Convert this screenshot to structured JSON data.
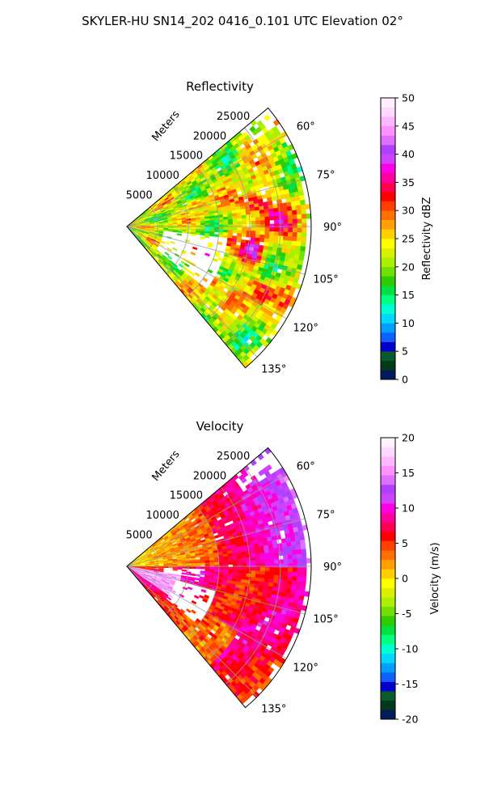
{
  "figure_title": "SKYLER-HU  SN14_202  0416_0.101 UTC Elevation 02°",
  "chart_data": [
    {
      "type": "heatmap",
      "subtype": "radar-ppi-sector",
      "title": "Reflectivity",
      "range_axis_label": "Meters",
      "range_ticks": [
        "5000",
        "10000",
        "15000",
        "20000",
        "25000"
      ],
      "range_tick_values": [
        5000,
        10000,
        15000,
        20000,
        25000
      ],
      "range_max": 30000,
      "azimuth_range": [
        50,
        140
      ],
      "azimuth_ticks": [
        "60°",
        "75°",
        "90°",
        "105°",
        "120°",
        "135°"
      ],
      "azimuth_tick_values": [
        60,
        75,
        90,
        105,
        120,
        135
      ],
      "grid": true,
      "colorbar": {
        "label": "Reflectivity dBZ",
        "range": [
          0,
          50
        ],
        "ticks": [
          "0",
          "5",
          "10",
          "15",
          "20",
          "25",
          "30",
          "35",
          "40",
          "45",
          "50"
        ],
        "tick_values": [
          0,
          5,
          10,
          15,
          20,
          25,
          30,
          35,
          40,
          45,
          50
        ],
        "colors": [
          "#001a5c",
          "#003a1a",
          "#0a5a2a",
          "#0000c8",
          "#1060ff",
          "#00a0ff",
          "#00d8ff",
          "#00ffd0",
          "#00ff80",
          "#00e040",
          "#30cc00",
          "#70e000",
          "#a8f000",
          "#d8f000",
          "#ffff00",
          "#ffd000",
          "#ffa000",
          "#ff7000",
          "#ff4000",
          "#ff0000",
          "#ff0050",
          "#ff00a0",
          "#ff00e0",
          "#d040ff",
          "#b040ff",
          "#e070ff",
          "#ff90ff",
          "#ffb8ff",
          "#ffd8ff",
          "#fff0ff"
        ]
      },
      "field_summary": "reflectivity mostly 20-30 dBZ with embedded cores 35-45 dBZ"
    },
    {
      "type": "heatmap",
      "subtype": "radar-ppi-sector",
      "title": "Velocity",
      "range_axis_label": "Meters",
      "range_ticks": [
        "5000",
        "10000",
        "15000",
        "20000",
        "25000"
      ],
      "range_tick_values": [
        5000,
        10000,
        15000,
        20000,
        25000
      ],
      "range_max": 30000,
      "azimuth_range": [
        50,
        140
      ],
      "azimuth_ticks": [
        "60°",
        "75°",
        "90°",
        "105°",
        "120°",
        "135°"
      ],
      "azimuth_tick_values": [
        60,
        75,
        90,
        105,
        120,
        135
      ],
      "grid": true,
      "colorbar": {
        "label": "Velocity (m/s)",
        "range": [
          -20,
          20
        ],
        "ticks": [
          "-20",
          "-15",
          "-10",
          "-5",
          "0",
          "5",
          "10",
          "15",
          "20"
        ],
        "tick_values": [
          -20,
          -15,
          -10,
          -5,
          0,
          5,
          10,
          15,
          20
        ],
        "colors": [
          "#001a5c",
          "#003a1a",
          "#0a5a2a",
          "#0000c8",
          "#1060ff",
          "#00a0ff",
          "#00d8ff",
          "#00ffd0",
          "#00ff80",
          "#00e040",
          "#30cc00",
          "#70e000",
          "#a8f000",
          "#d8f000",
          "#ffff00",
          "#ffd000",
          "#ffa000",
          "#ff7000",
          "#ff4000",
          "#ff0000",
          "#ff0050",
          "#ff00a0",
          "#ff00e0",
          "#d040ff",
          "#b040ff",
          "#e070ff",
          "#ff90ff",
          "#ffb8ff",
          "#ffd8ff",
          "#fff0ff"
        ]
      },
      "field_summary": "velocity 0-5 m/s near radar to north-east, 10-15 m/s in far north-east, 5-10 m/s to the south-east, 15-18 m/s patch near radar to the south"
    }
  ]
}
